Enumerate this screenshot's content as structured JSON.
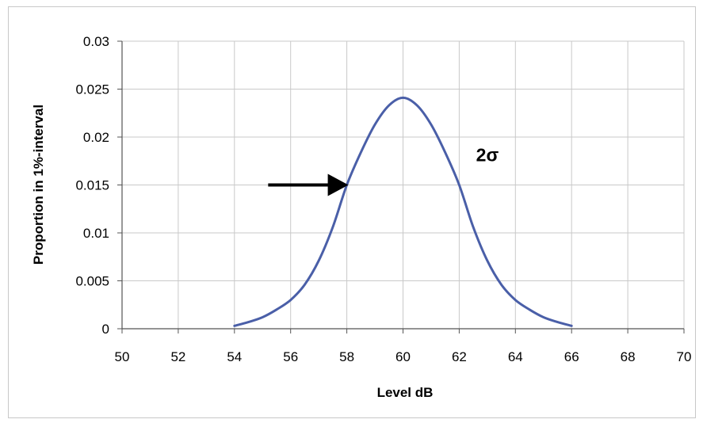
{
  "chart_data": {
    "type": "line",
    "xlabel": "Level dB",
    "ylabel": "Proportion in 1%-interval",
    "xlim": [
      50,
      70
    ],
    "ylim": [
      0,
      0.03
    ],
    "x_ticks": [
      "50",
      "52",
      "54",
      "56",
      "58",
      "60",
      "62",
      "64",
      "66",
      "68",
      "70"
    ],
    "y_ticks": [
      "0",
      "0.005",
      "0.01",
      "0.015",
      "0.02",
      "0.025",
      "0.03"
    ],
    "grid": true,
    "legend": "none",
    "series_color": "#4a5fa8",
    "series": [
      {
        "x": [
          54,
          54.5,
          55,
          55.5,
          56,
          56.5,
          57,
          57.5,
          58,
          58.5,
          59,
          59.5,
          60,
          60.5,
          61,
          61.5,
          62,
          62.5,
          63,
          63.5,
          64,
          64.5,
          65,
          65.5,
          66
        ],
        "y": [
          0.0003,
          0.0007,
          0.0012,
          0.002,
          0.003,
          0.0046,
          0.0071,
          0.0106,
          0.015,
          0.0184,
          0.0213,
          0.0233,
          0.0241,
          0.0233,
          0.0213,
          0.0184,
          0.015,
          0.0106,
          0.0071,
          0.0046,
          0.003,
          0.002,
          0.0012,
          0.0007,
          0.0003
        ]
      }
    ],
    "annotations": [
      {
        "text": "2σ",
        "x": 62.6,
        "y": 0.0175
      },
      {
        "type": "arrow",
        "from": [
          55.2,
          0.015
        ],
        "to": [
          58.0,
          0.015
        ]
      }
    ]
  }
}
